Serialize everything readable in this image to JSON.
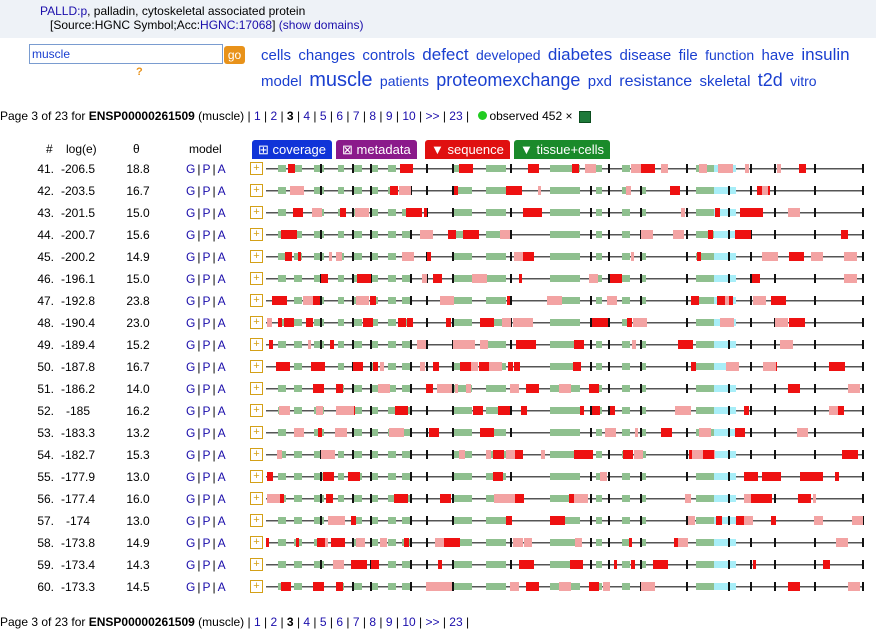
{
  "header": {
    "gene_link": "PALLD:p",
    "gene_desc": ", palladin, cytoskeletal associated protein",
    "source_prefix": "[Source:HGNC Symbol;Acc:",
    "source_link": "HGNC:17068",
    "source_suffix": "]",
    "show_domains": "(show domains)"
  },
  "search": {
    "value": "muscle",
    "go_label": "go",
    "help": "?"
  },
  "word_cloud": [
    {
      "word": "cells",
      "size": 15
    },
    {
      "word": "changes",
      "size": 15
    },
    {
      "word": "controls",
      "size": 15
    },
    {
      "word": "defect",
      "size": 17
    },
    {
      "word": "developed",
      "size": 14
    },
    {
      "word": "diabetes",
      "size": 17
    },
    {
      "word": "disease",
      "size": 15
    },
    {
      "word": "file",
      "size": 15
    },
    {
      "word": "function",
      "size": 14
    },
    {
      "word": "have",
      "size": 15
    },
    {
      "word": "insulin",
      "size": 17
    },
    {
      "word": "model",
      "size": 15
    },
    {
      "word": "muscle",
      "size": 20
    },
    {
      "word": "patients",
      "size": 14
    },
    {
      "word": "proteomexchange",
      "size": 18
    },
    {
      "word": "pxd",
      "size": 15
    },
    {
      "word": "resistance",
      "size": 16
    },
    {
      "word": "skeletal",
      "size": 15
    },
    {
      "word": "t2d",
      "size": 18
    },
    {
      "word": "vitro",
      "size": 14
    }
  ],
  "pager": {
    "prefix": "Page 3 of 23 for ",
    "protein": "ENSP00000261509",
    "query": " (muscle) | ",
    "pages": [
      "1",
      "2",
      "3",
      "4",
      "5",
      "6",
      "7",
      "8",
      "9",
      "10",
      ">>",
      "23"
    ],
    "current": "3",
    "observed": "observed 452 ×"
  },
  "columns": {
    "num": "#",
    "log": "log(e)",
    "theta": "θ",
    "model": "model"
  },
  "tabs": [
    {
      "label": "⊞ coverage",
      "color": "#1034d8"
    },
    {
      "label": "⊠ metadata",
      "color": "#8b1a8b"
    },
    {
      "label": "▼ sequence",
      "color": "#e01010"
    },
    {
      "label": "▼ tissue+cells",
      "color": "#1a8a2a"
    }
  ],
  "model_links": {
    "g": "G",
    "p": "P",
    "a": "A",
    "sep": "|"
  },
  "rows": [
    {
      "n": "41.",
      "log": "-206.5",
      "theta": "18.8"
    },
    {
      "n": "42.",
      "log": "-203.5",
      "theta": "16.7"
    },
    {
      "n": "43.",
      "log": "-201.5",
      "theta": "15.0"
    },
    {
      "n": "44.",
      "log": "-200.7",
      "theta": "15.6"
    },
    {
      "n": "45.",
      "log": "-200.2",
      "theta": "14.9"
    },
    {
      "n": "46.",
      "log": "-196.1",
      "theta": "15.0"
    },
    {
      "n": "47.",
      "log": "-192.8",
      "theta": "23.8"
    },
    {
      "n": "48.",
      "log": "-190.4",
      "theta": "23.0"
    },
    {
      "n": "49.",
      "log": "-189.4",
      "theta": "15.2"
    },
    {
      "n": "50.",
      "log": "-187.8",
      "theta": "16.7"
    },
    {
      "n": "51.",
      "log": "-186.2",
      "theta": "14.0"
    },
    {
      "n": "52.",
      "log": "-185",
      "theta": "16.2"
    },
    {
      "n": "53.",
      "log": "-183.3",
      "theta": "13.2"
    },
    {
      "n": "54.",
      "log": "-182.7",
      "theta": "15.3"
    },
    {
      "n": "55.",
      "log": "-177.9",
      "theta": "13.0"
    },
    {
      "n": "56.",
      "log": "-177.4",
      "theta": "16.0"
    },
    {
      "n": "57.",
      "log": "-174",
      "theta": "13.0"
    },
    {
      "n": "58.",
      "log": "-173.8",
      "theta": "14.9"
    },
    {
      "n": "59.",
      "log": "-173.4",
      "theta": "14.3"
    },
    {
      "n": "60.",
      "log": "-173.3",
      "theta": "14.5"
    }
  ],
  "track_colors": {
    "line": "#555555",
    "domain": "#8fc08f",
    "hit": "#ee1111",
    "hit_light": "#f3a3a3",
    "cyan": "#a8eef8"
  }
}
